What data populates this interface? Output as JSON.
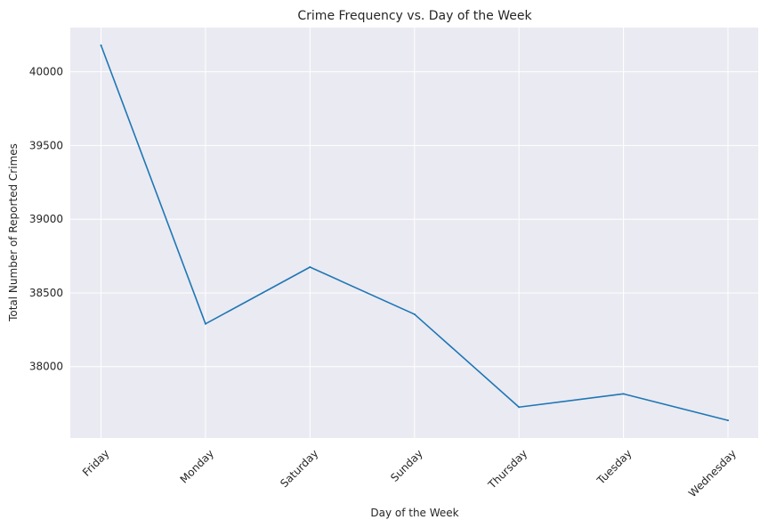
{
  "chart_data": {
    "type": "line",
    "title": "Crime Frequency vs. Day of the Week",
    "xlabel": "Day of the Week",
    "ylabel": "Total Number of Reported Crimes",
    "categories": [
      "Friday",
      "Monday",
      "Saturday",
      "Sunday",
      "Thursday",
      "Tuesday",
      "Wednesday"
    ],
    "values": [
      40180,
      38290,
      38675,
      38355,
      37725,
      37815,
      37635
    ],
    "ylim": [
      37515,
      40300
    ],
    "yticks": [
      38000,
      38500,
      39000,
      39500,
      40000
    ],
    "ytick_labels": [
      "38000",
      "38500",
      "39000",
      "39500",
      "40000"
    ],
    "grid": true,
    "line_color": "#1f77b4",
    "background_color": "#eaeaf2",
    "grid_color": "#ffffff"
  }
}
